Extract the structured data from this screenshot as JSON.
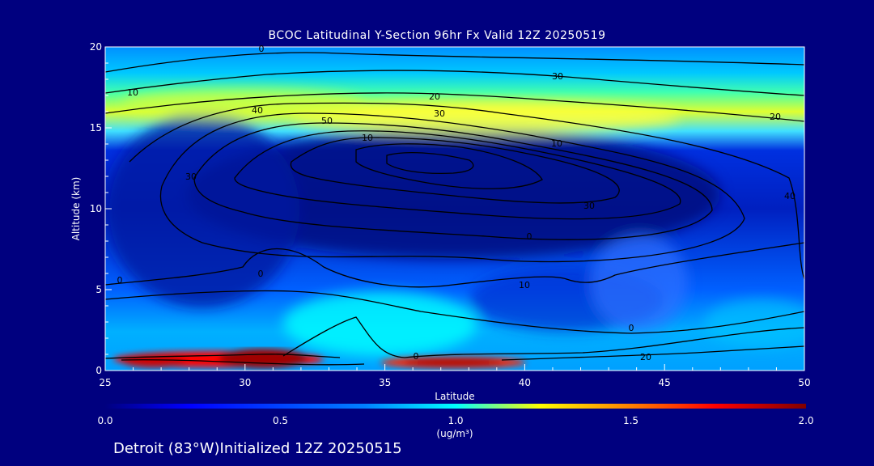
{
  "chart_data": {
    "type": "heatmap",
    "title": "BCOC Latitudinal Y-Section 96hr  Fx Valid 12Z 20250519",
    "xlabel": "Latitude",
    "ylabel": "Altitude (km)",
    "xlim": [
      25,
      50
    ],
    "ylim": [
      0,
      20
    ],
    "x_ticks": [
      "25",
      "30",
      "35",
      "40",
      "45",
      "50"
    ],
    "y_ticks": [
      "0",
      "5",
      "10",
      "15",
      "20"
    ],
    "colorbar": {
      "ticks": [
        "0.0",
        "0.5",
        "1.0",
        "1.5",
        "2.0"
      ],
      "range": [
        0,
        2
      ],
      "unit": "(ug/m³)",
      "colors": [
        "#00007f",
        "#0000ff",
        "#0080ff",
        "#00ffff",
        "#ffff00",
        "#ff8000",
        "#ff0000",
        "#7f0000"
      ]
    },
    "contour_labels": [
      "0",
      "10",
      "20",
      "30",
      "40",
      "50",
      "30",
      "10",
      "10",
      "20",
      "40",
      "30",
      "30",
      "0",
      "0",
      "10",
      "0",
      "0",
      "0",
      "20"
    ]
  },
  "footer": "Detroit (83°W)Initialized 12Z 20250515"
}
